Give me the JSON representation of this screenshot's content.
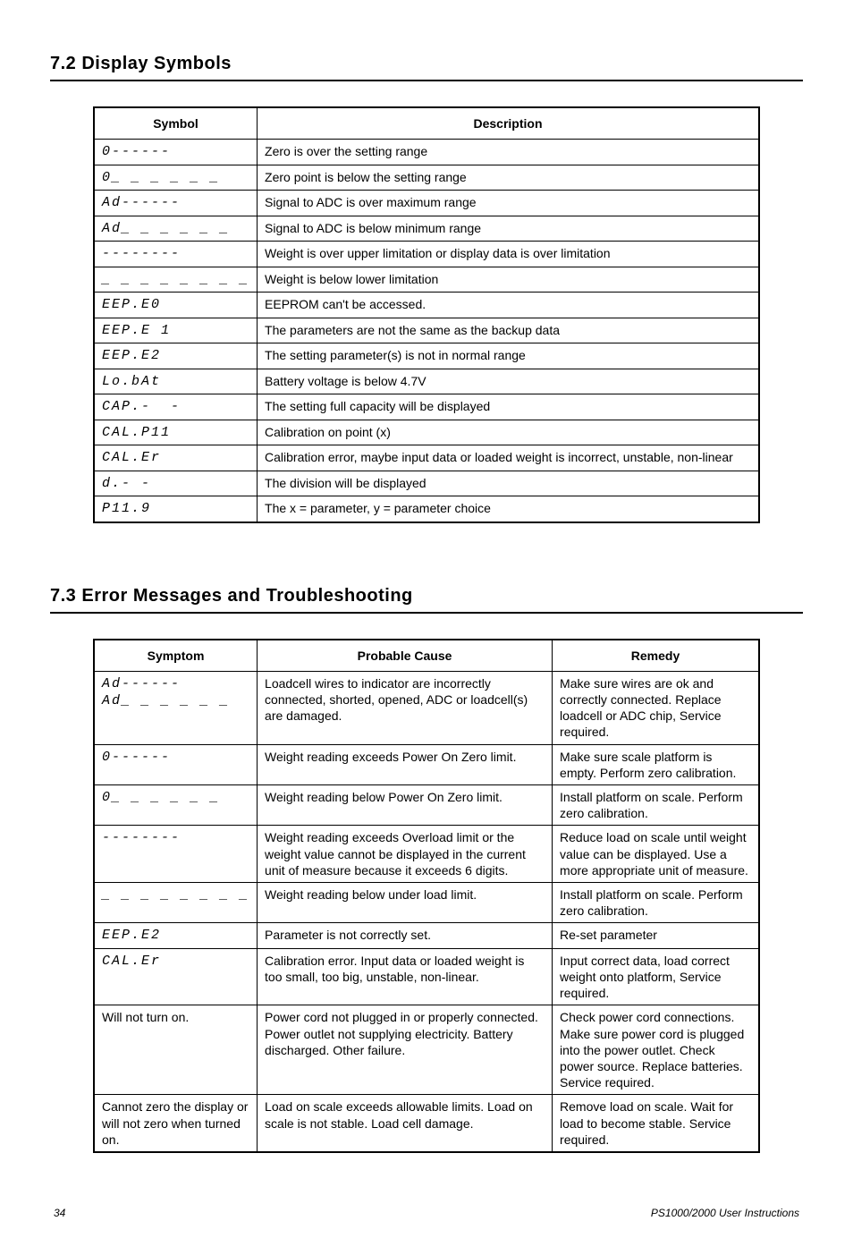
{
  "headings": {
    "symbols": "7.2   Display Symbols",
    "troubleshooting": "7.3   Error Messages and Troubleshooting"
  },
  "symbols_table": {
    "columns": [
      "Symbol",
      "Description"
    ],
    "rows": [
      [
        "0------",
        "Zero is over the setting range"
      ],
      [
        "0_ _ _ _ _ _",
        "Zero point is below the setting range"
      ],
      [
        "Ad------",
        "Signal to ADC is over maximum range"
      ],
      [
        "Ad_ _ _ _ _ _",
        "Signal to ADC is below minimum range"
      ],
      [
        "--------",
        "Weight is over upper limitation or display data is over limitation"
      ],
      [
        "_ _ _ _ _ _ _ _",
        "Weight is below lower limitation"
      ],
      [
        "EEP.E0",
        "EEPROM can't be accessed."
      ],
      [
        "EEP.E 1",
        "The parameters are not the same as the backup data"
      ],
      [
        "EEP.E2",
        "The setting parameter(s) is not in normal range"
      ],
      [
        "Lo.bAt",
        "Battery voltage is below 4.7V"
      ],
      [
        "CAP.-  -",
        "The setting full capacity will be displayed"
      ],
      [
        "CAL.P11",
        "Calibration on point (x)"
      ],
      [
        "CAL.Er",
        "Calibration error, maybe input data or loaded weight is incorrect, unstable, non-linear"
      ],
      [
        "d.- -",
        "The division will be displayed"
      ],
      [
        "P11.9",
        "The x = parameter, y = parameter choice"
      ]
    ]
  },
  "troubleshooting_table": {
    "columns": [
      "Symptom",
      "Probable Cause",
      "Remedy"
    ],
    "rows": [
      {
        "symptom_lines": [
          "Ad------",
          "Ad_ _ _ _ _ _"
        ],
        "symptom_seg": true,
        "cause": "Loadcell wires to indicator are incorrectly connected, shorted, opened, ADC or loadcell(s) are damaged.",
        "remedy": "Make sure wires are ok and correctly connected. Replace loadcell or ADC chip, Service required."
      },
      {
        "symptom_lines": [
          "0------"
        ],
        "symptom_seg": true,
        "cause": "Weight reading exceeds Power On Zero limit.",
        "remedy": "Make sure scale platform is empty. Perform zero calibration."
      },
      {
        "symptom_lines": [
          "0_ _ _ _ _ _"
        ],
        "symptom_seg": true,
        "cause": "Weight reading below Power On Zero limit.",
        "remedy": "Install platform on scale. Perform zero calibration."
      },
      {
        "symptom_lines": [
          "--------"
        ],
        "symptom_seg": true,
        "cause": "Weight reading exceeds Overload limit or the weight value cannot be displayed in the current unit of measure because it exceeds 6 digits.",
        "remedy": "Reduce load on scale until weight value can be displayed. Use a more appropriate unit of measure."
      },
      {
        "symptom_lines": [
          "_ _ _ _ _ _ _ _"
        ],
        "symptom_seg": true,
        "cause": "Weight reading below under load limit.",
        "remedy": "Install platform on scale. Perform zero calibration."
      },
      {
        "symptom_lines": [
          "EEP.E2"
        ],
        "symptom_seg": true,
        "cause": "Parameter is not correctly set.",
        "remedy": "Re-set parameter"
      },
      {
        "symptom_lines": [
          "CAL.Er"
        ],
        "symptom_seg": true,
        "cause": "Calibration error. Input data or loaded weight is too small, too big, unstable, non-linear.",
        "remedy": "Input correct data, load correct weight onto platform, Service required."
      },
      {
        "symptom_lines": [
          "Will not turn on."
        ],
        "symptom_seg": false,
        "cause": "Power cord not plugged in or properly connected. Power outlet not supplying electricity. Battery discharged. Other failure.",
        "remedy": "Check power cord connections. Make sure power cord is plugged into the power outlet. Check power source. Replace batteries. Service required."
      },
      {
        "symptom_lines": [
          "Cannot zero the display or will not zero when turned on."
        ],
        "symptom_seg": false,
        "cause": "Load on scale exceeds allowable limits. Load on scale is not stable. Load cell damage.",
        "remedy": "Remove load on scale. Wait for load to become stable. Service required."
      }
    ]
  },
  "footer": {
    "page": "34",
    "doc": "PS1000/2000 User Instructions"
  }
}
